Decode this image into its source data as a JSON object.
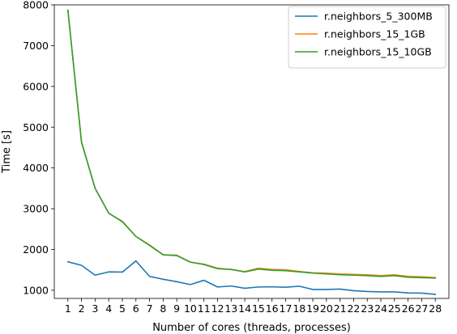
{
  "chart_data": {
    "type": "line",
    "title": "",
    "xlabel": "Number of cores (threads, processes)",
    "ylabel": "Time [s]",
    "x": [
      1,
      2,
      3,
      4,
      5,
      6,
      7,
      8,
      9,
      10,
      11,
      12,
      13,
      14,
      15,
      16,
      17,
      18,
      19,
      20,
      21,
      22,
      23,
      24,
      25,
      26,
      27,
      28
    ],
    "xlim": [
      0,
      29
    ],
    "ylim": [
      800,
      8000
    ],
    "yticks": [
      1000,
      2000,
      3000,
      4000,
      5000,
      6000,
      7000,
      8000
    ],
    "grid": false,
    "legend_position": "upper-right",
    "series": [
      {
        "name": "r.neighbors_5_300MB",
        "color": "#1f77b4",
        "values": [
          1700,
          1610,
          1370,
          1450,
          1445,
          1720,
          1340,
          1270,
          1210,
          1140,
          1245,
          1080,
          1105,
          1050,
          1080,
          1085,
          1075,
          1100,
          1020,
          1020,
          1030,
          990,
          970,
          960,
          960,
          935,
          930,
          900
        ]
      },
      {
        "name": "r.neighbors_15_1GB",
        "color": "#ff7f0e",
        "values": [
          7870,
          4640,
          3500,
          2890,
          2690,
          2320,
          2110,
          1870,
          1860,
          1690,
          1640,
          1540,
          1510,
          1460,
          1540,
          1510,
          1500,
          1460,
          1430,
          1420,
          1400,
          1390,
          1380,
          1360,
          1380,
          1340,
          1330,
          1310
        ]
      },
      {
        "name": "r.neighbors_15_10GB",
        "color": "#2ca02c",
        "values": [
          7870,
          4630,
          3500,
          2890,
          2680,
          2320,
          2100,
          1870,
          1850,
          1690,
          1630,
          1530,
          1510,
          1450,
          1520,
          1490,
          1480,
          1450,
          1420,
          1400,
          1380,
          1370,
          1360,
          1340,
          1360,
          1320,
          1310,
          1300
        ]
      }
    ]
  }
}
